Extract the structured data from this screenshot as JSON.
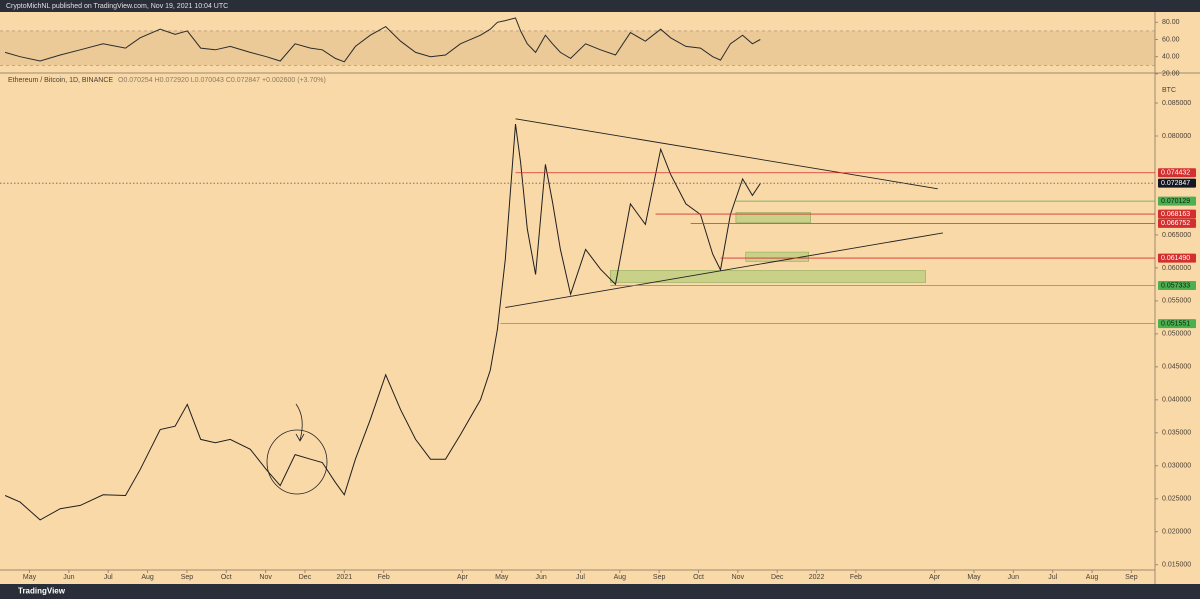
{
  "chart_data": [
    {
      "type": "line",
      "credit": "CryptoMichNL published on TradingView.com, Nov 19, 2021 10:04 UTC",
      "logo": "TradingView",
      "title": "Ethereum / Bitcoin, 1D, BINANCE",
      "subtitle": "O0.070254 H0.072920 L0.070043 C0.072847 +0.002600 (+3.70%)",
      "y_label": "BTC",
      "color": "#1f1f1f",
      "x": [
        -0.62,
        -0.24,
        0.27,
        0.78,
        1.29,
        1.87,
        2.44,
        2.81,
        3.32,
        3.7,
        4.01,
        4.35,
        4.72,
        5.1,
        5.61,
        6.02,
        6.37,
        6.75,
        7.14,
        7.44,
        7.77,
        8.0,
        8.28,
        8.66,
        9.05,
        9.43,
        9.81,
        10.19,
        10.57,
        10.95,
        11.46,
        11.71,
        11.89,
        12.09,
        12.35,
        12.48,
        12.65,
        12.86,
        13.11,
        13.29,
        13.49,
        13.75,
        14.13,
        14.51,
        14.89,
        15.27,
        15.65,
        16.04,
        16.29,
        16.68,
        17.05,
        17.36,
        17.56,
        17.81,
        18.12,
        18.37,
        18.57
      ],
      "values": [
        0.0255,
        0.0245,
        0.0218,
        0.0235,
        0.024,
        0.0256,
        0.0255,
        0.0294,
        0.0355,
        0.036,
        0.0393,
        0.034,
        0.0335,
        0.034,
        0.0325,
        0.0294,
        0.027,
        0.0317,
        0.031,
        0.0305,
        0.0275,
        0.0256,
        0.031,
        0.037,
        0.0438,
        0.0385,
        0.034,
        0.031,
        0.031,
        0.0347,
        0.04,
        0.0445,
        0.0507,
        0.0613,
        0.0818,
        0.076,
        0.0659,
        0.059,
        0.0757,
        0.07,
        0.0628,
        0.056,
        0.0628,
        0.0598,
        0.0575,
        0.0697,
        0.0666,
        0.078,
        0.0742,
        0.0697,
        0.0681,
        0.0621,
        0.0597,
        0.0681,
        0.0735,
        0.071,
        0.0728
      ],
      "xlim": [
        -0.75,
        28.6
      ],
      "xticks": [
        {
          "value": 0,
          "label": "May"
        },
        {
          "value": 1,
          "label": "Jun"
        },
        {
          "value": 2,
          "label": "Jul"
        },
        {
          "value": 3,
          "label": "Aug"
        },
        {
          "value": 4,
          "label": "Sep"
        },
        {
          "value": 5,
          "label": "Oct"
        },
        {
          "value": 6,
          "label": "Nov"
        },
        {
          "value": 7,
          "label": "Dec"
        },
        {
          "value": 8,
          "label": "2021"
        },
        {
          "value": 9,
          "label": "Feb"
        },
        {
          "value": 11,
          "label": "Apr"
        },
        {
          "value": 12,
          "label": "May"
        },
        {
          "value": 13,
          "label": "Jun"
        },
        {
          "value": 14,
          "label": "Jul"
        },
        {
          "value": 15,
          "label": "Aug"
        },
        {
          "value": 16,
          "label": "Sep"
        },
        {
          "value": 17,
          "label": "Oct"
        },
        {
          "value": 18,
          "label": "Nov"
        },
        {
          "value": 19,
          "label": "Dec"
        },
        {
          "value": 20,
          "label": "2022"
        },
        {
          "value": 21,
          "label": "Feb"
        },
        {
          "value": 23,
          "label": "Apr"
        },
        {
          "value": 24,
          "label": "May"
        },
        {
          "value": 25,
          "label": "Jun"
        },
        {
          "value": 26,
          "label": "Jul"
        },
        {
          "value": 27,
          "label": "Aug"
        },
        {
          "value": 28,
          "label": "Sep"
        }
      ],
      "ylim": [
        0.0142,
        0.0894
      ],
      "yticks": [
        {
          "value": 0.085,
          "label": "0.085000"
        },
        {
          "value": 0.08,
          "label": "0.080000"
        },
        {
          "value": 0.065,
          "label": "0.065000"
        },
        {
          "value": 0.06,
          "label": "0.060000"
        },
        {
          "value": 0.055,
          "label": "0.055000"
        },
        {
          "value": 0.05,
          "label": "0.050000"
        },
        {
          "value": 0.045,
          "label": "0.045000"
        },
        {
          "value": 0.04,
          "label": "0.040000"
        },
        {
          "value": 0.035,
          "label": "0.035000"
        },
        {
          "value": 0.03,
          "label": "0.030000"
        },
        {
          "value": 0.025,
          "label": "0.025000"
        },
        {
          "value": 0.02,
          "label": "0.020000"
        },
        {
          "value": 0.015,
          "label": "0.015000"
        }
      ],
      "levels": [
        {
          "value": 0.074432,
          "label": "0.074432",
          "color": "#d32f2f",
          "start": 12.35
        },
        {
          "value": 0.072847,
          "label": "0.072847",
          "color": "#131722",
          "start": -0.75
        },
        {
          "value": 0.070129,
          "label": "0.070129",
          "color": "#4caf50",
          "start": 17.95
        },
        {
          "value": 0.068163,
          "label": "0.068163",
          "color": "#d32f2f",
          "start": 15.91
        },
        {
          "value": 0.066752,
          "label": "0.066752",
          "color": "#d32f2f",
          "start": 16.8
        },
        {
          "value": 0.06149,
          "label": "0.061490",
          "color": "#d32f2f",
          "start": 17.56
        },
        {
          "value": 0.057333,
          "label": "0.057333",
          "color": "#4caf50",
          "start": 14.76
        },
        {
          "value": 0.051551,
          "label": "0.051551",
          "color": "#4caf50",
          "start": 11.97
        }
      ],
      "trendlines": [
        {
          "points": [
            [
              12.35,
              0.0826
            ],
            [
              23.08,
              0.072
            ]
          ]
        },
        {
          "points": [
            [
              12.09,
              0.054
            ],
            [
              23.21,
              0.0653
            ]
          ]
        }
      ],
      "zones": [
        {
          "from": 17.95,
          "to": 19.85,
          "low": 0.0669,
          "high": 0.0684
        },
        {
          "from": 18.2,
          "to": 19.8,
          "low": 0.061,
          "high": 0.0624
        },
        {
          "from": 14.76,
          "to": 22.77,
          "low": 0.0578,
          "high": 0.0596
        }
      ]
    },
    {
      "type": "line",
      "color": "#2b2b2b",
      "x": [
        -0.62,
        -0.24,
        0.27,
        0.78,
        1.29,
        1.87,
        2.44,
        2.81,
        3.32,
        3.7,
        4.01,
        4.35,
        4.72,
        5.1,
        5.61,
        6.02,
        6.37,
        6.75,
        7.14,
        7.44,
        7.77,
        8.0,
        8.28,
        8.66,
        9.05,
        9.43,
        9.81,
        10.19,
        10.57,
        10.95,
        11.46,
        11.71,
        11.89,
        12.09,
        12.35,
        12.48,
        12.65,
        12.86,
        13.11,
        13.29,
        13.49,
        13.75,
        14.13,
        14.51,
        14.89,
        15.27,
        15.65,
        16.04,
        16.29,
        16.68,
        17.05,
        17.36,
        17.56,
        17.81,
        18.12,
        18.37,
        18.57
      ],
      "values": [
        45,
        40,
        35,
        42,
        48,
        55,
        50,
        62,
        72,
        66,
        70,
        50,
        48,
        52,
        45,
        40,
        35,
        55,
        50,
        48,
        38,
        34,
        52,
        65,
        75,
        58,
        45,
        40,
        42,
        55,
        65,
        72,
        80,
        82,
        85,
        70,
        55,
        45,
        65,
        55,
        45,
        38,
        55,
        48,
        42,
        68,
        58,
        72,
        62,
        52,
        50,
        40,
        36,
        55,
        65,
        55,
        60
      ],
      "band": [
        30,
        70
      ],
      "ylim": [
        21,
        92
      ],
      "yticks": [
        {
          "value": 80,
          "label": "80.00"
        },
        {
          "value": 60,
          "label": "60.00"
        },
        {
          "value": 40,
          "label": "40.00"
        },
        {
          "value": 20,
          "label": "20.00"
        }
      ]
    }
  ]
}
